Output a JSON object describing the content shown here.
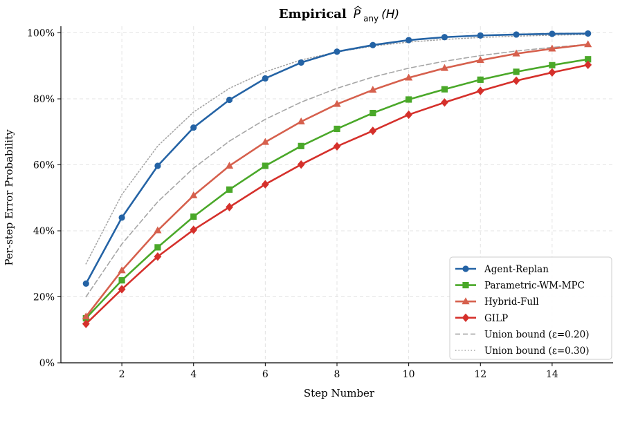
{
  "chart_data": {
    "type": "line",
    "title_prefix": "Empirical",
    "title_symbol": "P",
    "title_subscript": "any",
    "title_suffix": "(H)",
    "xlabel": "Step Number",
    "ylabel": "Per-step Error Probability",
    "xlim": [
      0.3,
      15.7
    ],
    "ylim": [
      0,
      1.02
    ],
    "xticks": [
      2,
      4,
      6,
      8,
      10,
      12,
      14
    ],
    "yticks": [
      0,
      0.2,
      0.4,
      0.6,
      0.8,
      1.0
    ],
    "ytick_labels": [
      "0%",
      "20%",
      "40%",
      "60%",
      "80%",
      "100%"
    ],
    "grid": true,
    "legend_position": "bottom-right",
    "x": [
      1,
      2,
      3,
      4,
      5,
      6,
      7,
      8,
      9,
      10,
      11,
      12,
      13,
      14,
      15
    ],
    "series": [
      {
        "name": "Agent-Replan",
        "color": "#2463a5",
        "marker": "circle",
        "style": "solid",
        "values": [
          0.24,
          0.44,
          0.597,
          0.713,
          0.797,
          0.862,
          0.91,
          0.943,
          0.963,
          0.978,
          0.987,
          0.992,
          0.995,
          0.997,
          0.998
        ]
      },
      {
        "name": "Parametric-WM-MPC",
        "color": "#4aa829",
        "marker": "square",
        "style": "solid",
        "values": [
          0.135,
          0.25,
          0.35,
          0.443,
          0.525,
          0.597,
          0.657,
          0.709,
          0.757,
          0.798,
          0.829,
          0.858,
          0.882,
          0.902,
          0.92
        ]
      },
      {
        "name": "Hybrid-Full",
        "color": "#d6604d",
        "marker": "triangle",
        "style": "solid",
        "values": [
          0.14,
          0.28,
          0.401,
          0.507,
          0.597,
          0.669,
          0.731,
          0.784,
          0.827,
          0.864,
          0.893,
          0.917,
          0.937,
          0.952,
          0.965
        ]
      },
      {
        "name": "GILP",
        "color": "#d5302b",
        "marker": "diamond",
        "style": "solid",
        "values": [
          0.118,
          0.223,
          0.322,
          0.403,
          0.472,
          0.541,
          0.601,
          0.656,
          0.703,
          0.752,
          0.789,
          0.824,
          0.855,
          0.88,
          0.903
        ]
      },
      {
        "name": "Union bound (ε=0.20)",
        "color": "#a6a6a6",
        "marker": "none",
        "style": "dashed",
        "values": [
          0.2,
          0.36,
          0.488,
          0.59,
          0.672,
          0.738,
          0.79,
          0.832,
          0.866,
          0.893,
          0.914,
          0.931,
          0.945,
          0.956,
          0.965
        ]
      },
      {
        "name": "Union bound (ε=0.30)",
        "color": "#a6a6a6",
        "marker": "none",
        "style": "dotted",
        "values": [
          0.3,
          0.51,
          0.657,
          0.76,
          0.832,
          0.882,
          0.918,
          0.942,
          0.96,
          0.972,
          0.98,
          0.986,
          0.99,
          0.993,
          0.995
        ]
      }
    ]
  }
}
